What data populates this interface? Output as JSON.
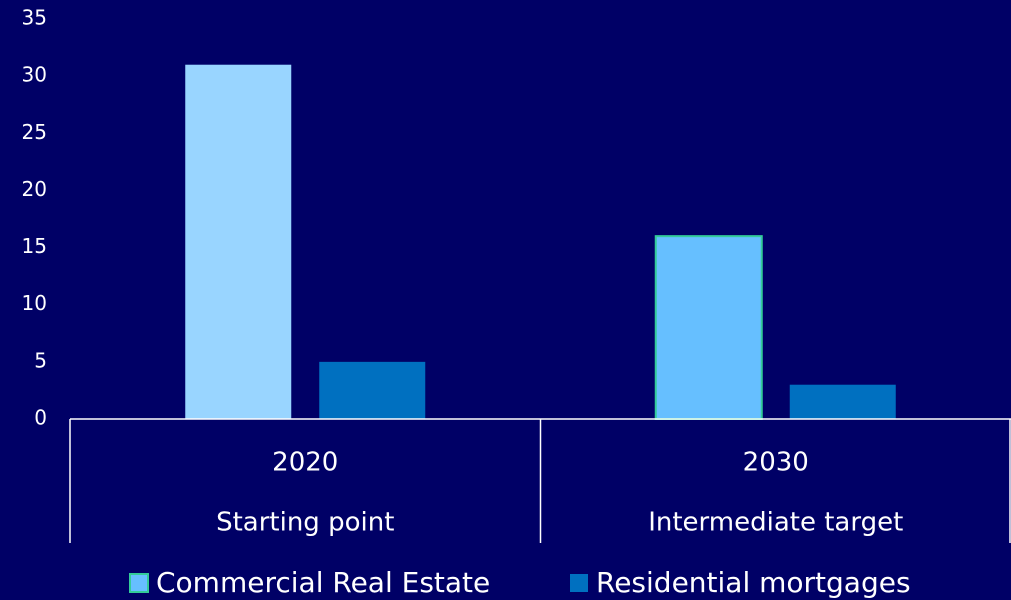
{
  "chart_data": {
    "type": "bar",
    "categories": [
      "2020",
      "2030"
    ],
    "subcategories": [
      "Starting point",
      "Intermediate target"
    ],
    "series": [
      {
        "name": "Commercial Real Estate",
        "color": "#66bfff",
        "edgecolor": "#33cc99",
        "colors": [
          "#99d5ff",
          "#66bfff"
        ],
        "edgecolors": [
          null,
          "#33cc99"
        ],
        "values": [
          31,
          16
        ]
      },
      {
        "name": "Residential mortgages",
        "color": "#0070c0",
        "values": [
          5,
          3
        ]
      }
    ],
    "ylim": [
      0,
      35
    ],
    "yticks": [
      0,
      5,
      10,
      15,
      20,
      25,
      30,
      35
    ],
    "grid": false,
    "background": "#000066",
    "legend": "bottom"
  }
}
